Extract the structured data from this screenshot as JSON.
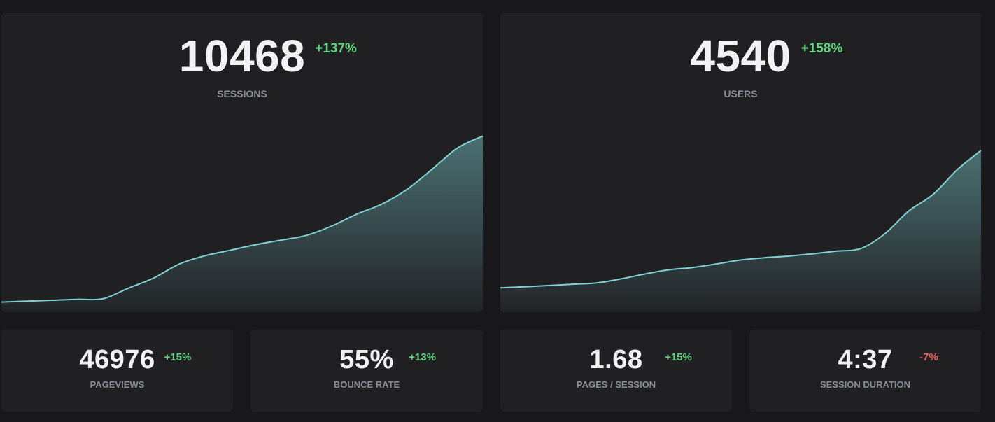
{
  "colors": {
    "background": "#18181a",
    "card": "#202023",
    "line": "#7fd3d4",
    "positive": "#5ed77f",
    "negative": "#ef5e5a",
    "label": "#8b8d98"
  },
  "main_cards": [
    {
      "value": "10468",
      "delta": "+137%",
      "delta_direction": "up",
      "label": "SESSIONS"
    },
    {
      "value": "4540",
      "delta": "+158%",
      "delta_direction": "up",
      "label": "USERS"
    }
  ],
  "small_cards": [
    {
      "value": "46976",
      "delta": "+15%",
      "delta_direction": "up",
      "label": "PAGEVIEWS"
    },
    {
      "value": "55%",
      "delta": "+13%",
      "delta_direction": "up",
      "label": "BOUNCE RATE"
    },
    {
      "value": "1.68",
      "delta": "+15%",
      "delta_direction": "up",
      "label": "PAGES / SESSION"
    },
    {
      "value": "4:37",
      "delta": "-7%",
      "delta_direction": "down",
      "label": "SESSION DURATION"
    }
  ],
  "chart_data": [
    {
      "type": "area",
      "series": [
        {
          "values": [
            1.0,
            1.05,
            1.1,
            1.15,
            1.18,
            1.75,
            2.3,
            3.05,
            3.5,
            3.8,
            4.1,
            4.35,
            4.6,
            5.1,
            5.75,
            6.3,
            7.1,
            8.2,
            9.35,
            10.0
          ]
        }
      ],
      "ylim": [
        0,
        11
      ]
    },
    {
      "type": "area",
      "series": [
        {
          "values": [
            1.0,
            1.03,
            1.07,
            1.11,
            1.15,
            1.27,
            1.42,
            1.55,
            1.62,
            1.73,
            1.85,
            1.92,
            1.97,
            2.04,
            2.12,
            2.2,
            2.65,
            3.35,
            3.85,
            4.6,
            5.2
          ]
        }
      ],
      "ylim": [
        0,
        6.2
      ]
    }
  ]
}
